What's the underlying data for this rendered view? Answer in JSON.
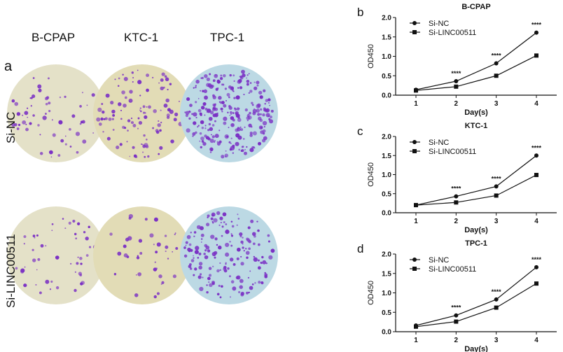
{
  "panel_a": {
    "label": "a",
    "columns": [
      "B-CPAP",
      "KTC-1",
      "TPC-1"
    ],
    "rows": [
      "Si-NC",
      "Si-LINC00511"
    ],
    "plate_colors": {
      "B-CPAP": "#e4e1c8",
      "KTC-1": "#e2dcb6",
      "TPC-1": "#bcd9e4",
      "colony": "#7a2fc4"
    }
  },
  "chart_data": [
    {
      "panel": "b",
      "type": "line",
      "title": "B-CPAP",
      "xlabel": "Day(s)",
      "ylabel": "OD450",
      "x": [
        1,
        2,
        3,
        4
      ],
      "ylim": [
        0,
        2.0
      ],
      "yticks": [
        "0.0",
        "0.5",
        "1.0",
        "1.5",
        "2.0"
      ],
      "legend": "top-left",
      "series": [
        {
          "name": "Si-NC",
          "marker": "circle",
          "values": [
            0.14,
            0.36,
            0.82,
            1.61
          ]
        },
        {
          "name": "Si-LINC00511",
          "marker": "square",
          "values": [
            0.12,
            0.22,
            0.5,
            1.02
          ]
        }
      ],
      "annotations": [
        "",
        "****",
        "****",
        "****"
      ]
    },
    {
      "panel": "c",
      "type": "line",
      "title": "KTC-1",
      "xlabel": "Day(s)",
      "ylabel": "OD450",
      "x": [
        1,
        2,
        3,
        4
      ],
      "ylim": [
        0,
        2.0
      ],
      "yticks": [
        "0.0",
        "0.5",
        "1.0",
        "1.5",
        "2.0"
      ],
      "legend": "top-left",
      "series": [
        {
          "name": "Si-NC",
          "marker": "circle",
          "values": [
            0.2,
            0.43,
            0.69,
            1.5
          ]
        },
        {
          "name": "Si-LINC00511",
          "marker": "square",
          "values": [
            0.2,
            0.27,
            0.45,
            0.99
          ]
        }
      ],
      "annotations": [
        "",
        "****",
        "****",
        "****"
      ]
    },
    {
      "panel": "d",
      "type": "line",
      "title": "TPC-1",
      "xlabel": "Day(s)",
      "ylabel": "OD450",
      "x": [
        1,
        2,
        3,
        4
      ],
      "ylim": [
        0,
        2.0
      ],
      "yticks": [
        "0.0",
        "0.5",
        "1.0",
        "1.5",
        "2.0"
      ],
      "legend": "top-left",
      "series": [
        {
          "name": "Si-NC",
          "marker": "circle",
          "values": [
            0.16,
            0.42,
            0.83,
            1.66
          ]
        },
        {
          "name": "Si-LINC00511",
          "marker": "square",
          "values": [
            0.13,
            0.26,
            0.62,
            1.24
          ]
        }
      ],
      "annotations": [
        "",
        "****",
        "****",
        "****"
      ]
    }
  ]
}
